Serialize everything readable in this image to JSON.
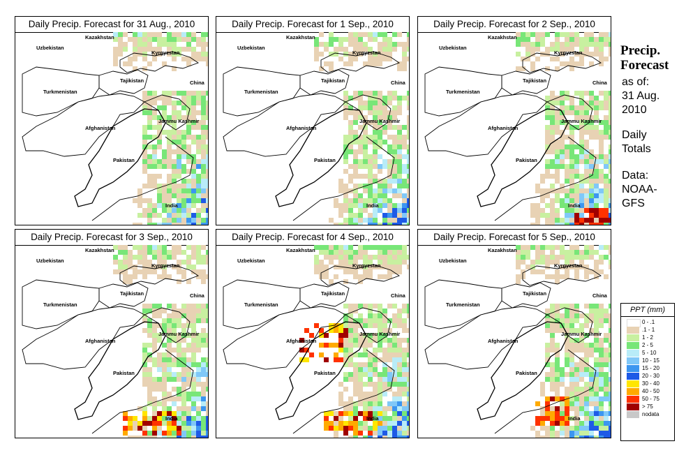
{
  "panels": [
    {
      "title": "Daily Precip. Forecast for  31 Aug., 2010",
      "seed": 1,
      "hot": []
    },
    {
      "title": "Daily Precip. Forecast for  1 Sep., 2010",
      "seed": 2,
      "hot": []
    },
    {
      "title": "Daily Precip. Forecast for  2 Sep., 2010",
      "seed": 3,
      "hot": [
        "se"
      ]
    },
    {
      "title": "Daily Precip. Forecast for  3 Sep., 2010",
      "seed": 4,
      "hot": [
        "south"
      ]
    },
    {
      "title": "Daily Precip. Forecast for  4 Sep., 2010",
      "seed": 5,
      "hot": [
        "south",
        "center"
      ]
    },
    {
      "title": "Daily Precip. Forecast for  5 Sep., 2010",
      "seed": 6,
      "hot": [
        "southwest"
      ]
    }
  ],
  "map_labels": [
    "Kazakhstan",
    "Uzbekistan",
    "Kyrgyzstan",
    "Tajikistan",
    "China",
    "Turkmenistan",
    "Afghanistan",
    "Jammu Kashmir",
    "Pakistan",
    "India"
  ],
  "sidebar": {
    "title_line1": "Precip.",
    "title_line2": "Forecast",
    "asof_line1": "as of:",
    "asof_line2": "31 Aug.",
    "asof_line3": "2010",
    "totals_line1": "Daily",
    "totals_line2": "Totals",
    "data_line1": "Data:",
    "data_line2": "NOAA-",
    "data_line3": "GFS"
  },
  "legend": {
    "title": "PPT (mm)",
    "items": [
      {
        "label": "0 - .1",
        "color": "#ffffff"
      },
      {
        "label": ".1 - 1",
        "color": "#e8d2b4"
      },
      {
        "label": "1 - 2",
        "color": "#c8f0a0"
      },
      {
        "label": "2 - 5",
        "color": "#78e678"
      },
      {
        "label": "5 - 10",
        "color": "#b8ecf8"
      },
      {
        "label": "10 - 15",
        "color": "#80c8f8"
      },
      {
        "label": "15 - 20",
        "color": "#3c96f0"
      },
      {
        "label": "20 - 30",
        "color": "#1e5ae6"
      },
      {
        "label": "30 - 40",
        "color": "#ffe600"
      },
      {
        "label": "40 - 50",
        "color": "#ffaa00"
      },
      {
        "label": "50 - 75",
        "color": "#ff3200"
      },
      {
        "label": "> 75",
        "color": "#a00000"
      },
      {
        "label": "nodata",
        "color": "#c8c8c8"
      }
    ]
  }
}
